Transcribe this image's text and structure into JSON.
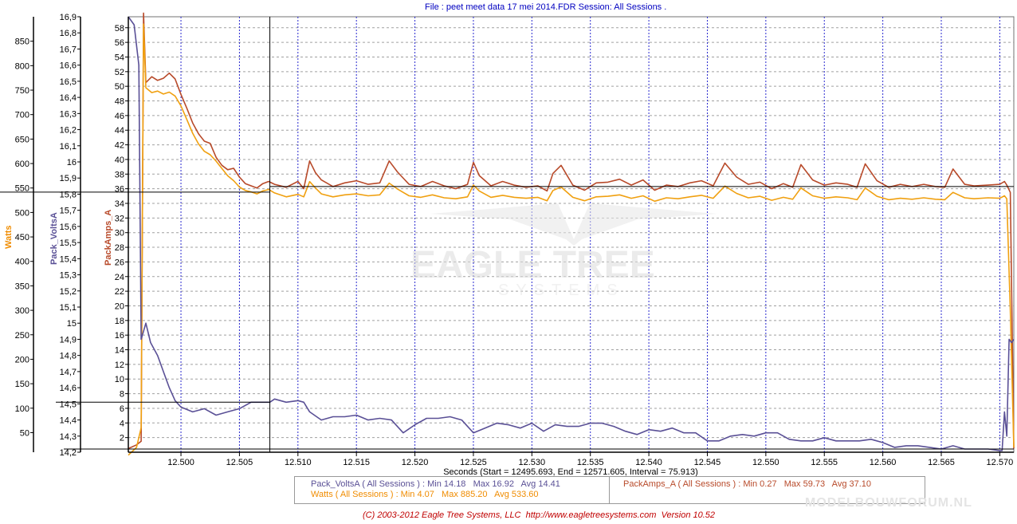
{
  "header": {
    "file_label": "File : ",
    "file_name": "peet meet data 17 mei 2014.FDR",
    "session_label": "   Session: ",
    "session_value": "All Sessions ."
  },
  "colors": {
    "watts": "#f0a010",
    "volts": "#5a5096",
    "amps": "#b84a2a",
    "watts_label": "#f08c00",
    "grid_major": "#2a2ad0",
    "grid_minor": "#a0a0a0",
    "copyright": "#c00000"
  },
  "watermark": {
    "line1": "EAGLE TREE",
    "line2": "SYSTEMS"
  },
  "footer": {
    "copyright": "(C) 2003-2012 Eagle Tree Systems, LLC  http://www.eagletreesystems.com  Version 10.52",
    "site_watermark": "MODELBOUWFORUM.NL"
  },
  "legend": {
    "volts": "Pack_VoltsA ( All Sessions ) : Min 14.18   Max 16.92   Avg 14.41",
    "watts": "Watts ( All Sessions ) : Min 4.07   Max 885.20   Avg 533.60",
    "amps": "PackAmps_A ( All Sessions ) : Min 0.27   Max 59.73   Avg 37.10"
  },
  "chart_data": {
    "type": "line",
    "x_axis": {
      "label": "Seconds (Start = 12495.693,  End = 12571.605,  Interval = 75.913)",
      "range": [
        12.4955,
        12.5712
      ],
      "ticks": [
        "12.500",
        "12.505",
        "12.510",
        "12.515",
        "12.520",
        "12.525",
        "12.530",
        "12.535",
        "12.540",
        "12.545",
        "12.550",
        "12.555",
        "12.560",
        "12.565",
        "12.570"
      ],
      "tick_values": [
        12.5,
        12.505,
        12.51,
        12.515,
        12.52,
        12.525,
        12.53,
        12.535,
        12.54,
        12.545,
        12.55,
        12.555,
        12.56,
        12.565,
        12.57
      ]
    },
    "y_axes": [
      {
        "label": "Watts",
        "range": [
          10,
          900
        ],
        "ticks": [
          "850",
          "800",
          "750",
          "700",
          "650",
          "600",
          "550",
          "500",
          "450",
          "400",
          "350",
          "300",
          "250",
          "200",
          "150",
          "100",
          "50"
        ],
        "tick_values": [
          850,
          800,
          750,
          700,
          650,
          600,
          550,
          500,
          450,
          400,
          350,
          300,
          250,
          200,
          150,
          100,
          50
        ]
      },
      {
        "label": "Pack_VoltsA",
        "range": [
          14.2,
          16.9
        ],
        "ticks": [
          "16,9",
          "16,8",
          "16,7",
          "16,6",
          "16,5",
          "16,4",
          "16,3",
          "16,2",
          "16,1",
          "16",
          "15,9",
          "15,8",
          "15,7",
          "15,6",
          "15,5",
          "15,4",
          "15,3",
          "15,2",
          "15,1",
          "15",
          "14,9",
          "14,8",
          "14,7",
          "14,6",
          "14,5",
          "14,4",
          "14,3",
          "14,2"
        ],
        "tick_values": [
          16.9,
          16.8,
          16.7,
          16.6,
          16.5,
          16.4,
          16.3,
          16.2,
          16.1,
          16.0,
          15.9,
          15.8,
          15.7,
          15.6,
          15.5,
          15.4,
          15.3,
          15.2,
          15.1,
          15.0,
          14.9,
          14.8,
          14.7,
          14.6,
          14.5,
          14.4,
          14.3,
          14.2
        ]
      },
      {
        "label": "PackAmps_A",
        "range": [
          0,
          59.5
        ],
        "ticks": [
          "58",
          "56",
          "54",
          "52",
          "50",
          "48",
          "46",
          "44",
          "42",
          "40",
          "38",
          "36",
          "34",
          "32",
          "30",
          "28",
          "26",
          "24",
          "22",
          "20",
          "18",
          "16",
          "14",
          "12",
          "10",
          "8",
          "6",
          "4",
          "2"
        ],
        "tick_values": [
          58,
          56,
          54,
          52,
          50,
          48,
          46,
          44,
          42,
          40,
          38,
          36,
          34,
          32,
          30,
          28,
          26,
          24,
          22,
          20,
          18,
          16,
          14,
          12,
          10,
          8,
          6,
          4,
          2
        ]
      }
    ],
    "series": [
      {
        "name": "PackAmps_A",
        "axis": 2,
        "x": [
          12.4955,
          12.4962,
          12.4966,
          12.4968,
          12.497,
          12.4975,
          12.498,
          12.4985,
          12.499,
          12.4995,
          12.5,
          12.5005,
          12.501,
          12.5015,
          12.502,
          12.5025,
          12.503,
          12.5035,
          12.504,
          12.5045,
          12.505,
          12.5055,
          12.506,
          12.5065,
          12.507,
          12.5075,
          12.508,
          12.509,
          12.51,
          12.5105,
          12.511,
          12.5115,
          12.512,
          12.513,
          12.514,
          12.515,
          12.516,
          12.517,
          12.5178,
          12.5185,
          12.5195,
          12.5205,
          12.5215,
          12.5225,
          12.5235,
          12.5245,
          12.525,
          12.5255,
          12.5265,
          12.5275,
          12.5285,
          12.5295,
          12.5305,
          12.5313,
          12.5318,
          12.5325,
          12.5335,
          12.5345,
          12.5355,
          12.5365,
          12.5375,
          12.5385,
          12.5395,
          12.5405,
          12.5415,
          12.5425,
          12.5435,
          12.5445,
          12.5455,
          12.5465,
          12.5475,
          12.5485,
          12.5495,
          12.5505,
          12.5515,
          12.5523,
          12.553,
          12.554,
          12.555,
          12.556,
          12.557,
          12.5578,
          12.5585,
          12.5595,
          12.5605,
          12.5615,
          12.5625,
          12.5635,
          12.5645,
          12.5653,
          12.566,
          12.567,
          12.5678,
          12.569,
          12.57,
          12.5704,
          12.5706,
          12.5709,
          12.5712
        ],
        "y": [
          0.5,
          1,
          1.5,
          60,
          50.5,
          51.3,
          50.8,
          51.1,
          51.8,
          51.0,
          48.9,
          47,
          45,
          43.5,
          42.5,
          42.2,
          40.3,
          39.2,
          38.6,
          38.8,
          37.6,
          36.7,
          36.4,
          36.1,
          36.7,
          37.0,
          36.6,
          36.2,
          37.0,
          36.0,
          39.8,
          38.2,
          37.2,
          36.3,
          36.8,
          37.1,
          36.6,
          36.8,
          39.8,
          38.3,
          36.6,
          36.3,
          37.0,
          36.4,
          36.0,
          36.6,
          39.6,
          37.8,
          36.4,
          37.0,
          36.5,
          36.2,
          36.4,
          35.7,
          38.1,
          39.2,
          36.5,
          35.8,
          36.8,
          36.9,
          37.3,
          36.5,
          37.2,
          35.8,
          36.5,
          36.3,
          36.8,
          37.1,
          36.4,
          39.5,
          37.6,
          36.6,
          36.9,
          36.0,
          36.7,
          36.2,
          39.3,
          37.2,
          36.5,
          36.8,
          36.6,
          36.2,
          39.4,
          37.1,
          36.2,
          36.6,
          36.3,
          36.6,
          36.3,
          36.2,
          38.7,
          36.6,
          36.4,
          36.5,
          36.6,
          37.0,
          36.5,
          35.5,
          0.5
        ]
      },
      {
        "name": "Watts",
        "axis": 0,
        "x": [
          12.4955,
          12.4962,
          12.4966,
          12.4968,
          12.497,
          12.4975,
          12.498,
          12.4985,
          12.499,
          12.4995,
          12.5,
          12.5005,
          12.501,
          12.5015,
          12.502,
          12.5025,
          12.503,
          12.5035,
          12.504,
          12.5045,
          12.505,
          12.5055,
          12.506,
          12.5065,
          12.507,
          12.5075,
          12.508,
          12.509,
          12.51,
          12.5105,
          12.511,
          12.5115,
          12.512,
          12.513,
          12.514,
          12.515,
          12.516,
          12.517,
          12.5178,
          12.5185,
          12.5195,
          12.5205,
          12.5215,
          12.5225,
          12.5235,
          12.5245,
          12.525,
          12.5255,
          12.5265,
          12.5275,
          12.5285,
          12.5295,
          12.5305,
          12.5313,
          12.5318,
          12.5325,
          12.5335,
          12.5345,
          12.5355,
          12.5365,
          12.5375,
          12.5385,
          12.5395,
          12.5405,
          12.5415,
          12.5425,
          12.5435,
          12.5445,
          12.5455,
          12.5465,
          12.5475,
          12.5485,
          12.5495,
          12.5505,
          12.5515,
          12.5523,
          12.553,
          12.554,
          12.555,
          12.556,
          12.557,
          12.5578,
          12.5585,
          12.5595,
          12.5605,
          12.5615,
          12.5625,
          12.5635,
          12.5645,
          12.5653,
          12.566,
          12.567,
          12.5678,
          12.569,
          12.57,
          12.5704,
          12.5706,
          12.5709,
          12.5712
        ],
        "y": [
          4,
          20,
          60,
          885,
          755,
          745,
          748,
          742,
          746,
          738,
          718,
          690,
          662,
          640,
          625,
          618,
          605,
          590,
          575,
          565,
          552,
          545,
          542,
          538,
          544,
          547,
          540,
          532,
          537,
          532,
          563,
          550,
          538,
          532,
          536,
          538,
          534,
          536,
          560,
          548,
          534,
          531,
          536,
          530,
          528,
          532,
          556,
          544,
          531,
          535,
          531,
          529,
          531,
          524,
          545,
          552,
          531,
          524,
          532,
          533,
          536,
          529,
          534,
          523,
          530,
          528,
          532,
          535,
          529,
          554,
          539,
          530,
          533,
          525,
          531,
          527,
          550,
          534,
          529,
          532,
          530,
          526,
          550,
          533,
          526,
          529,
          527,
          530,
          527,
          526,
          541,
          530,
          528,
          530,
          529,
          534,
          528,
          300,
          20
        ]
      },
      {
        "name": "Pack_VoltsA",
        "axis": 1,
        "x": [
          12.4955,
          12.496,
          12.4964,
          12.4966,
          12.4968,
          12.497,
          12.4974,
          12.498,
          12.4985,
          12.499,
          12.4995,
          12.5,
          12.501,
          12.502,
          12.503,
          12.504,
          12.505,
          12.506,
          12.5076,
          12.508,
          12.509,
          12.51,
          12.5105,
          12.511,
          12.512,
          12.513,
          12.514,
          12.515,
          12.516,
          12.517,
          12.518,
          12.519,
          12.52,
          12.521,
          12.522,
          12.523,
          12.524,
          12.525,
          12.526,
          12.527,
          12.528,
          12.529,
          12.53,
          12.531,
          12.532,
          12.533,
          12.534,
          12.535,
          12.536,
          12.537,
          12.538,
          12.539,
          12.54,
          12.541,
          12.542,
          12.543,
          12.544,
          12.545,
          12.546,
          12.547,
          12.548,
          12.549,
          12.55,
          12.551,
          12.552,
          12.553,
          12.554,
          12.555,
          12.556,
          12.557,
          12.558,
          12.559,
          12.56,
          12.561,
          12.562,
          12.563,
          12.564,
          12.565,
          12.566,
          12.567,
          12.568,
          12.569,
          12.57,
          12.5702,
          12.5704,
          12.5706,
          12.5708,
          12.571,
          12.5712
        ],
        "y": [
          16.9,
          16.85,
          16.6,
          14.9,
          14.95,
          15.0,
          14.88,
          14.8,
          14.7,
          14.6,
          14.52,
          14.48,
          14.45,
          14.47,
          14.43,
          14.45,
          14.47,
          14.51,
          14.51,
          14.53,
          14.51,
          14.52,
          14.51,
          14.45,
          14.4,
          14.42,
          14.42,
          14.43,
          14.4,
          14.41,
          14.4,
          14.32,
          14.37,
          14.41,
          14.41,
          14.42,
          14.4,
          14.32,
          14.35,
          14.38,
          14.37,
          14.35,
          14.38,
          14.33,
          14.37,
          14.36,
          14.36,
          14.38,
          14.38,
          14.36,
          14.33,
          14.31,
          14.34,
          14.33,
          14.35,
          14.32,
          14.32,
          14.27,
          14.27,
          14.3,
          14.31,
          14.3,
          14.32,
          14.32,
          14.28,
          14.27,
          14.27,
          14.29,
          14.27,
          14.27,
          14.27,
          14.28,
          14.26,
          14.23,
          14.24,
          14.24,
          14.23,
          14.22,
          14.24,
          14.22,
          14.22,
          14.22,
          14.21,
          14.21,
          14.45,
          14.3,
          14.9,
          14.88,
          14.9
        ]
      }
    ],
    "cursor": {
      "x": 12.5076,
      "watts": 540,
      "volts": 14.51,
      "amps": 36.3
    },
    "grid": true
  }
}
